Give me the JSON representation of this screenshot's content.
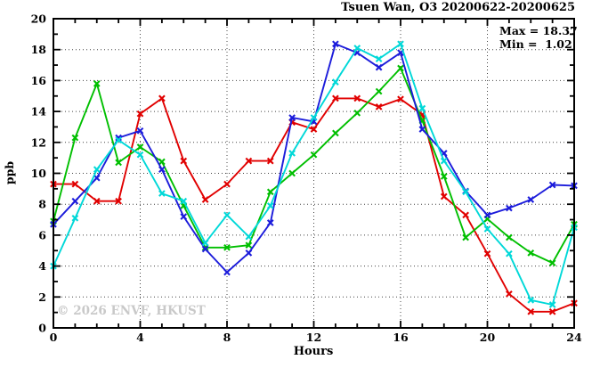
{
  "title": "Tsuen Wan, O3 20200622-20200625",
  "annotations": {
    "max_label": "Max = 18.37",
    "min_label": "Min =  1.02"
  },
  "watermark": "© 2026 ENVF, HKUST",
  "axes": {
    "xlabel": "Hours",
    "ylabel": "ppb"
  },
  "chart_data": {
    "type": "line",
    "title": "Tsuen Wan, O3 20200622-20200625",
    "xlabel": "Hours",
    "ylabel": "ppb",
    "xlim": [
      0,
      24
    ],
    "ylim": [
      0,
      20
    ],
    "x_major_tick_step": 4,
    "x_minor_tick_step": 1,
    "y_major_tick_step": 2,
    "y_minor_tick_step": 1,
    "grid": "dotted at every major tick",
    "legend_position": "none",
    "stat_max": 18.37,
    "stat_min": 1.02,
    "x": [
      0,
      1,
      2,
      3,
      4,
      5,
      6,
      7,
      8,
      9,
      10,
      11,
      12,
      13,
      14,
      15,
      16,
      17,
      18,
      19,
      20,
      21,
      22,
      23,
      24
    ],
    "series": [
      {
        "name": "red",
        "color": "#e10000",
        "values": [
          9.3,
          9.3,
          8.2,
          8.2,
          13.85,
          14.85,
          10.8,
          8.3,
          9.3,
          10.8,
          10.8,
          13.3,
          12.85,
          14.85,
          14.85,
          14.3,
          14.8,
          13.8,
          8.5,
          7.3,
          4.8,
          2.2,
          1.05,
          1.05,
          1.6
        ]
      },
      {
        "name": "green",
        "color": "#00bf00",
        "values": [
          6.9,
          12.3,
          15.8,
          10.7,
          11.7,
          10.75,
          7.9,
          5.2,
          5.2,
          5.35,
          8.8,
          10.0,
          11.2,
          12.6,
          13.9,
          15.3,
          16.8,
          13.4,
          9.8,
          5.85,
          7.05,
          5.85,
          4.85,
          4.2,
          6.7
        ]
      },
      {
        "name": "blue",
        "color": "#1c1cdb",
        "values": [
          6.7,
          8.2,
          9.7,
          12.3,
          12.75,
          10.25,
          7.2,
          5.1,
          3.6,
          4.85,
          6.8,
          13.6,
          13.35,
          18.37,
          17.8,
          16.85,
          17.8,
          12.85,
          11.3,
          8.85,
          7.3,
          7.75,
          8.3,
          9.25,
          9.2
        ]
      },
      {
        "name": "cyan",
        "color": "#00d8d8",
        "values": [
          4.0,
          7.1,
          10.25,
          12.15,
          11.2,
          8.7,
          8.2,
          5.5,
          7.3,
          5.9,
          7.9,
          11.3,
          13.6,
          15.9,
          18.1,
          17.4,
          18.37,
          14.2,
          10.8,
          8.8,
          6.4,
          4.8,
          1.8,
          1.5,
          6.5
        ]
      }
    ]
  }
}
